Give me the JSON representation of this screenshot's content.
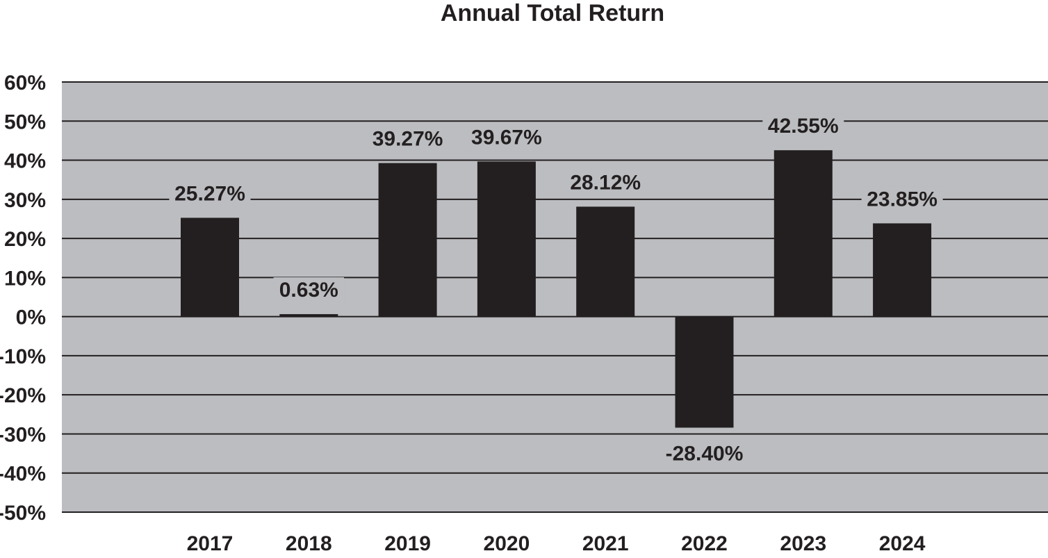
{
  "chart_data": {
    "type": "bar",
    "title": "Annual Total Return",
    "xlabel": "",
    "ylabel": "",
    "categories": [
      "2017",
      "2018",
      "2019",
      "2020",
      "2021",
      "2022",
      "2023",
      "2024"
    ],
    "values": [
      25.27,
      0.63,
      39.27,
      39.67,
      28.12,
      -28.4,
      42.55,
      23.85
    ],
    "data_labels": [
      "25.27%",
      "0.63%",
      "39.27%",
      "39.67%",
      "28.12%",
      "-28.40%",
      "42.55%",
      "23.85%"
    ],
    "ylim": [
      -50,
      60
    ],
    "y_ticks": [
      60,
      50,
      40,
      30,
      20,
      10,
      0,
      -10,
      -20,
      -30,
      -40,
      -50
    ],
    "y_tick_labels": [
      "60%",
      "50%",
      "40%",
      "30%",
      "20%",
      "10%",
      "0%",
      "-10%",
      "-20%",
      "-30%",
      "-40%",
      "-50%"
    ],
    "grid": true,
    "legend": "none",
    "colors": {
      "plot_background": "#bcbdc0",
      "bar": "#231f20",
      "gridline": "#231f20",
      "text": "#231f20"
    }
  }
}
